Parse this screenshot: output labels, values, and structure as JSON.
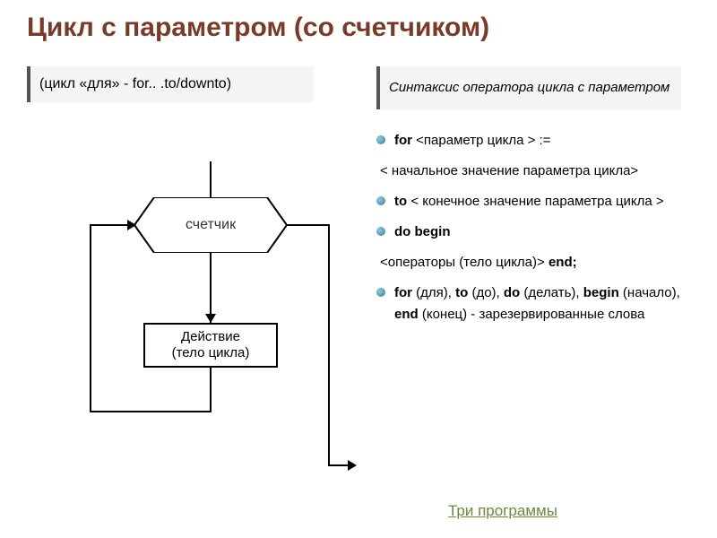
{
  "title": {
    "text": "Цикл с параметром (со счетчиком)",
    "color": "#7a3a2a",
    "fontsize": 30
  },
  "subtitle_left": {
    "text": "(цикл «для» - for.. .to/downto)",
    "bg": "#f5f5f5"
  },
  "subtitle_right": {
    "text": "Синтаксис оператора цикла с параметром",
    "bg": "#f5f5f5"
  },
  "syntax": {
    "items": [
      {
        "bullet": true,
        "html": "<span class='bold'>for</span> &lt;параметр цикла &gt; :="
      },
      {
        "bullet": false,
        "html": "&lt; начальное значение параметра цикла&gt;"
      },
      {
        "bullet": true,
        "html": "<span class='bold'>to</span> &lt; конечное значение параметра цикла &gt;"
      },
      {
        "bullet": true,
        "html": " <span class='bold'>do begin</span>"
      },
      {
        "bullet": false,
        "html": "&lt;операторы (тело цикла)&gt; <span class='bold'>end;</span>"
      },
      {
        "bullet": true,
        "html": "<span class='bold'>for</span> (для), <span class='bold'>to</span> (до), <span class='bold'>do</span> (делать), <span class='bold'>begin</span> (начало), <span class='bold'>end</span> (конец) - зарезервированные слова"
      }
    ]
  },
  "flowchart": {
    "type": "flowchart",
    "nodes": {
      "counter": {
        "label": "счетчик",
        "shape": "hexagon",
        "stroke": "#000000",
        "fill": "#ffffff"
      },
      "action": {
        "label_line1": "Действие",
        "label_line2": "(тело цикла)",
        "shape": "rect",
        "stroke": "#000000",
        "fill": "#ffffff"
      }
    },
    "edges": [
      {
        "from": "top",
        "to": "counter"
      },
      {
        "from": "counter",
        "to": "action",
        "arrow": true
      },
      {
        "from": "action",
        "to": "counter",
        "loop_back": true,
        "arrow": true
      },
      {
        "from": "counter",
        "to": "exit",
        "arrow": true
      }
    ],
    "line_color": "#000000",
    "line_width": 2
  },
  "link": {
    "text": "Три  программы",
    "color": "#6a8a3a"
  },
  "background_color": "#ffffff"
}
